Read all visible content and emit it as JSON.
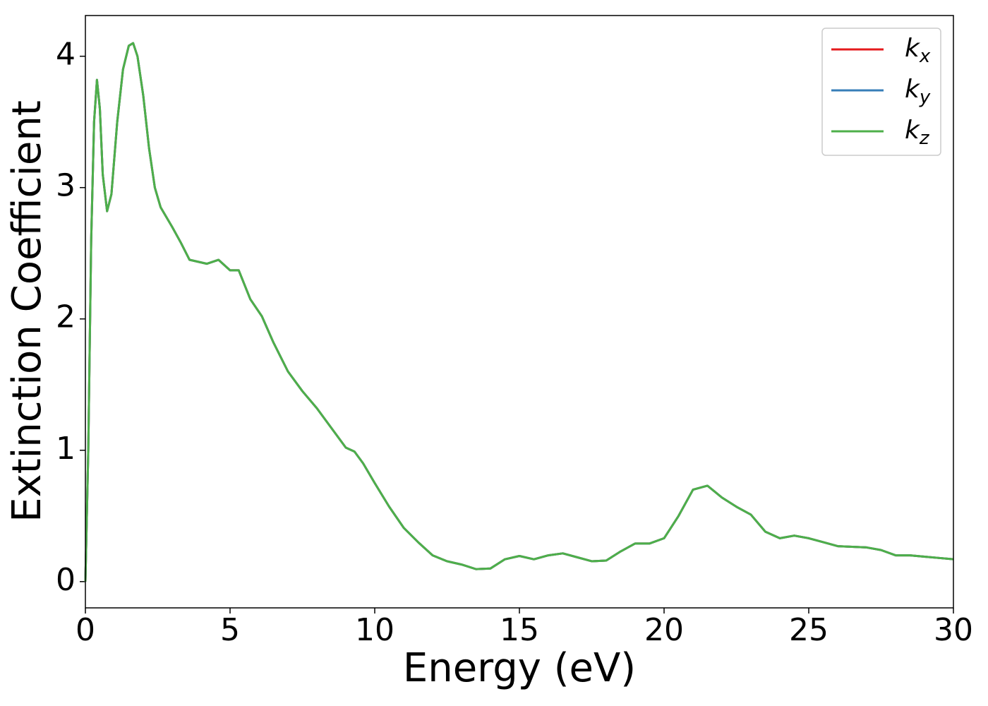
{
  "chart_data": {
    "type": "line",
    "xlabel": "Energy (eV)",
    "ylabel": "Extinction Coefficient",
    "x": [
      0,
      0.1,
      0.2,
      0.3,
      0.4,
      0.5,
      0.6,
      0.75,
      0.9,
      1.1,
      1.3,
      1.5,
      1.65,
      1.8,
      2.0,
      2.2,
      2.4,
      2.6,
      3.0,
      3.3,
      3.6,
      4.0,
      4.2,
      4.6,
      5.0,
      5.3,
      5.7,
      6.1,
      6.5,
      7.0,
      7.5,
      8.0,
      8.5,
      9.0,
      9.3,
      9.6,
      10.0,
      10.5,
      11.0,
      11.5,
      12.0,
      12.5,
      13.0,
      13.5,
      14.0,
      14.5,
      15.0,
      15.5,
      16.0,
      16.5,
      17.0,
      17.5,
      18.0,
      18.5,
      19.0,
      19.5,
      20.0,
      20.5,
      21.0,
      21.5,
      22.0,
      22.5,
      23.0,
      23.5,
      24.0,
      24.5,
      25.0,
      25.5,
      26.0,
      26.5,
      27.0,
      27.5,
      28.0,
      28.5,
      29.0,
      29.5,
      30.0
    ],
    "series": [
      {
        "name": "kx",
        "color": "#e41a1c",
        "values": [
          0,
          1.0,
          2.6,
          3.5,
          3.82,
          3.6,
          3.1,
          2.82,
          2.95,
          3.5,
          3.9,
          4.08,
          4.1,
          4.0,
          3.7,
          3.3,
          3.0,
          2.85,
          2.7,
          2.58,
          2.45,
          2.43,
          2.42,
          2.45,
          2.37,
          2.37,
          2.15,
          2.02,
          1.82,
          1.6,
          1.45,
          1.32,
          1.17,
          1.02,
          0.99,
          0.9,
          0.75,
          0.57,
          0.41,
          0.3,
          0.2,
          0.155,
          0.13,
          0.095,
          0.1,
          0.17,
          0.195,
          0.17,
          0.2,
          0.215,
          0.185,
          0.155,
          0.16,
          0.23,
          0.29,
          0.29,
          0.33,
          0.5,
          0.7,
          0.73,
          0.64,
          0.57,
          0.51,
          0.38,
          0.33,
          0.35,
          0.33,
          0.3,
          0.27,
          0.265,
          0.26,
          0.24,
          0.2,
          0.2,
          0.19,
          0.18,
          0.17
        ]
      },
      {
        "name": "ky",
        "color": "#377eb8",
        "values": [
          0,
          1.0,
          2.6,
          3.5,
          3.82,
          3.6,
          3.1,
          2.82,
          2.95,
          3.5,
          3.9,
          4.08,
          4.1,
          4.0,
          3.7,
          3.3,
          3.0,
          2.85,
          2.7,
          2.58,
          2.45,
          2.43,
          2.42,
          2.45,
          2.37,
          2.37,
          2.15,
          2.02,
          1.82,
          1.6,
          1.45,
          1.32,
          1.17,
          1.02,
          0.99,
          0.9,
          0.75,
          0.57,
          0.41,
          0.3,
          0.2,
          0.155,
          0.13,
          0.095,
          0.1,
          0.17,
          0.195,
          0.17,
          0.2,
          0.215,
          0.185,
          0.155,
          0.16,
          0.23,
          0.29,
          0.29,
          0.33,
          0.5,
          0.7,
          0.73,
          0.64,
          0.57,
          0.51,
          0.38,
          0.33,
          0.35,
          0.33,
          0.3,
          0.27,
          0.265,
          0.26,
          0.24,
          0.2,
          0.2,
          0.19,
          0.18,
          0.17
        ]
      },
      {
        "name": "kz",
        "color": "#4daf4a",
        "values": [
          0,
          1.0,
          2.6,
          3.5,
          3.82,
          3.6,
          3.1,
          2.82,
          2.95,
          3.5,
          3.9,
          4.08,
          4.1,
          4.0,
          3.7,
          3.3,
          3.0,
          2.85,
          2.7,
          2.58,
          2.45,
          2.43,
          2.42,
          2.45,
          2.37,
          2.37,
          2.15,
          2.02,
          1.82,
          1.6,
          1.45,
          1.32,
          1.17,
          1.02,
          0.99,
          0.9,
          0.75,
          0.57,
          0.41,
          0.3,
          0.2,
          0.155,
          0.13,
          0.095,
          0.1,
          0.17,
          0.195,
          0.17,
          0.2,
          0.215,
          0.185,
          0.155,
          0.16,
          0.23,
          0.29,
          0.29,
          0.33,
          0.5,
          0.7,
          0.73,
          0.64,
          0.57,
          0.51,
          0.38,
          0.33,
          0.35,
          0.33,
          0.3,
          0.27,
          0.265,
          0.26,
          0.24,
          0.2,
          0.2,
          0.19,
          0.18,
          0.17
        ]
      }
    ],
    "xlim": [
      0,
      30
    ],
    "xticks": [
      0,
      5,
      10,
      15,
      20,
      25,
      30
    ],
    "ylim": [
      -0.2,
      4.31
    ],
    "yticks": [
      0,
      1,
      2,
      3,
      4
    ],
    "grid": false,
    "legend": "upper right"
  }
}
